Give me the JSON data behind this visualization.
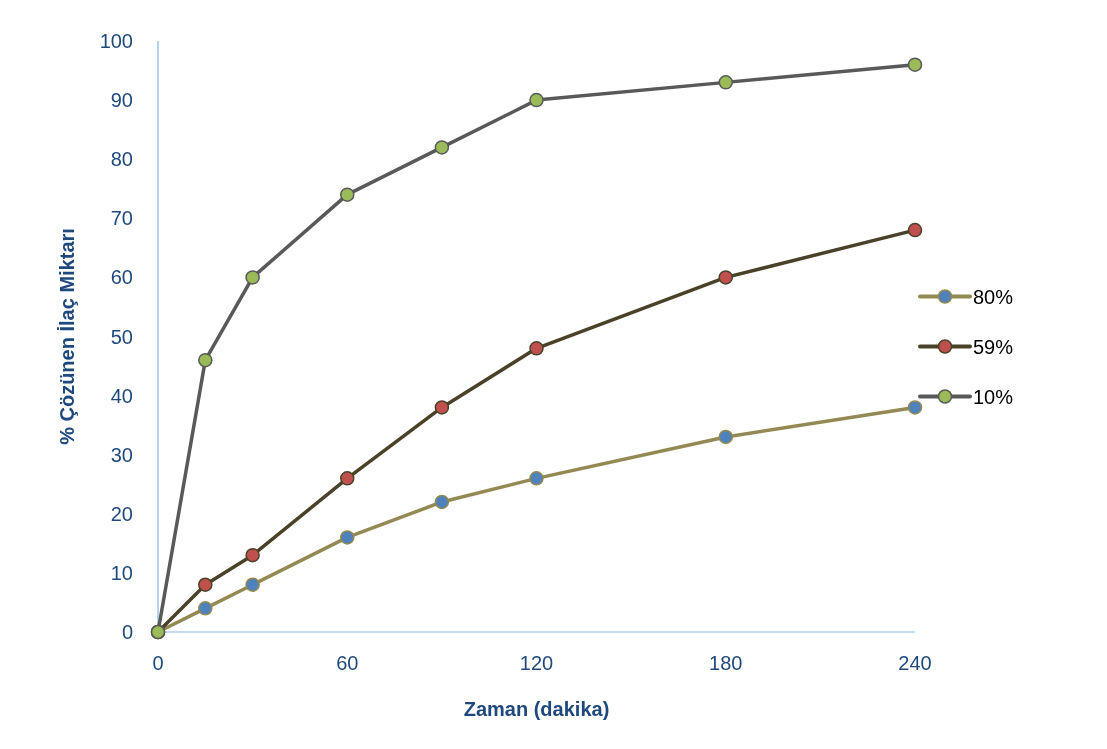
{
  "chart_data": {
    "type": "line",
    "xlabel": "Zaman (dakika)",
    "ylabel": "% Çözünen İlaç Miktarı",
    "x": [
      0,
      15,
      30,
      60,
      90,
      120,
      180,
      240
    ],
    "series": [
      {
        "name": "80%",
        "color": "#938953",
        "values": [
          0,
          4,
          8,
          16,
          22,
          26,
          33,
          38
        ]
      },
      {
        "name": "59%",
        "color": "#4a4228",
        "values": [
          0,
          8,
          13,
          26,
          38,
          48,
          60,
          68
        ]
      },
      {
        "name": "10%",
        "color": "#595959",
        "values": [
          0,
          46,
          60,
          74,
          82,
          90,
          93,
          96
        ]
      }
    ],
    "xlim": [
      0,
      240
    ],
    "xticks": [
      0,
      60,
      120,
      180,
      240
    ],
    "ylim": [
      0,
      100
    ],
    "yticks": [
      0,
      10,
      20,
      30,
      40,
      50,
      60,
      70,
      80,
      90,
      100
    ],
    "grid": false,
    "legend": "right",
    "marker": "circle",
    "line_style": "solid"
  }
}
